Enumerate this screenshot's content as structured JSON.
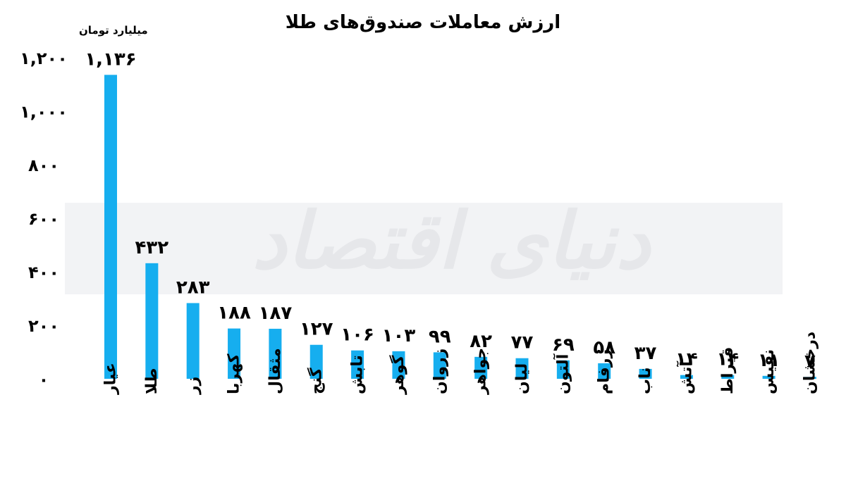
{
  "chart_data": {
    "type": "bar",
    "title": "ارزش معاملات صندوق‌های طلا",
    "ylabel": "میلیارد تومان",
    "xlabel": "",
    "ylim": [
      0,
      1200
    ],
    "yticks": [
      0,
      200,
      400,
      600,
      800,
      1000,
      1200
    ],
    "ytick_labels": [
      "۰",
      "۲۰۰",
      "۴۰۰",
      "۶۰۰",
      "۸۰۰",
      "۱,۰۰۰",
      "۱,۲۰۰"
    ],
    "categories": [
      "عیار",
      "طلا",
      "زر",
      "کهربا",
      "مثقال",
      "گنج",
      "تابش",
      "گوهر",
      "زروان",
      "جواهر",
      "لیان",
      "آلتون",
      "زرفام",
      "ناب",
      "آتش",
      "قیراط",
      "نفیس",
      "درخشان"
    ],
    "values": [
      1136,
      432,
      283,
      188,
      187,
      127,
      106,
      103,
      99,
      82,
      77,
      69,
      58,
      37,
      14,
      14,
      11,
      7
    ],
    "value_labels": [
      "۱,۱۳۶",
      "۴۳۲",
      "۲۸۳",
      "۱۸۸",
      "۱۸۷",
      "۱۲۷",
      "۱۰۶",
      "۱۰۳",
      "۹۹",
      "۸۲",
      "۷۷",
      "۶۹",
      "۵۸",
      "۳۷",
      "۱۴",
      "۱۴",
      "۱۱",
      "۷"
    ],
    "grid": false,
    "legend": "none",
    "bar_color": "#16AEEF"
  },
  "watermark": {
    "text": "دنیای اقتصاد",
    "band_color": "#F2F3F5",
    "text_color": "#E6E7EA"
  }
}
